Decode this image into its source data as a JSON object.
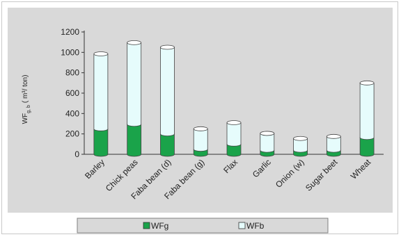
{
  "chart_data": {
    "type": "bar",
    "stacked": true,
    "categories": [
      "Barley",
      "Chick peas",
      "Faba bean (d)",
      "Faba bean (g)",
      "Flax",
      "Garlic",
      "Onion (w)",
      "Sugar beet",
      "Wheat"
    ],
    "series": [
      {
        "name": "WFg",
        "values": [
          250,
          295,
          200,
          50,
          100,
          40,
          40,
          40,
          165
        ],
        "color": "#1aa34a"
      },
      {
        "name": "WFb",
        "values": [
          735,
          800,
          850,
          200,
          210,
          165,
          115,
          135,
          535
        ],
        "color": "#e6fcfc"
      }
    ],
    "ylabel_main": "WF",
    "ylabel_sub": "g, b",
    "ylabel_unit": "( m³/ ton)",
    "ylim": [
      0,
      1200
    ],
    "yticks": [
      0,
      200,
      400,
      600,
      800,
      1000,
      1200
    ],
    "grid": false,
    "legend_position": "bottom",
    "plot_background": "#d9d9d9"
  }
}
